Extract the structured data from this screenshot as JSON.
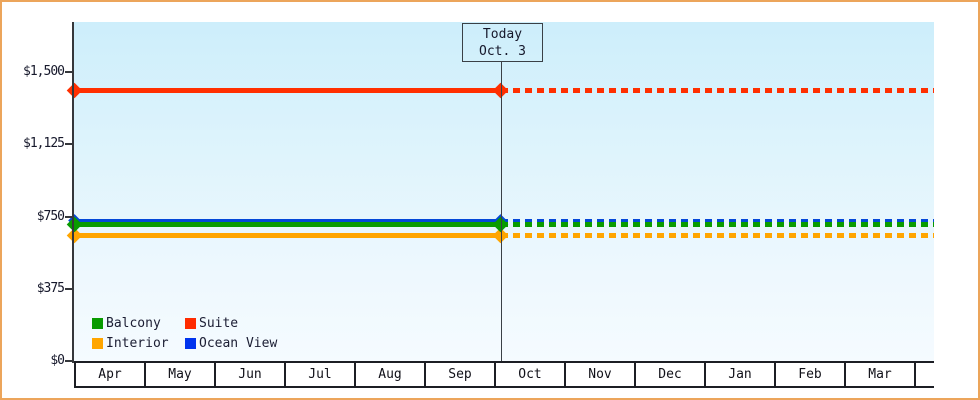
{
  "chart_data": {
    "type": "line",
    "title": "",
    "x_months": [
      "Apr",
      "May",
      "Jun",
      "Jul",
      "Aug",
      "Sep",
      "Oct",
      "Nov",
      "Dec",
      "Jan",
      "Feb",
      "Mar"
    ],
    "y_ticks": [
      {
        "label": "$1,500",
        "value": 1500
      },
      {
        "label": "$1,125",
        "value": 1125
      },
      {
        "label": "$750",
        "value": 750
      },
      {
        "label": "$375",
        "value": 375
      },
      {
        "label": "$0",
        "value": 0
      }
    ],
    "ylim": [
      0,
      1760
    ],
    "grid": false,
    "legend_position": "bottom-left inside plot",
    "today": {
      "line1": "Today",
      "line2": "Oct. 3",
      "month": "Oct",
      "day": 3
    },
    "line_style_note": "solid before today, dotted projection after today, diamond markers at series start and at today",
    "series": [
      {
        "name": "Suite",
        "color": "#ff2f00",
        "value": 1405,
        "thickness": 5,
        "marker": true
      },
      {
        "name": "Interior",
        "color": "#ffa500",
        "value": 651,
        "thickness": 5,
        "marker": true
      },
      {
        "name": "Ocean View",
        "color": "#0448d8",
        "value": 727,
        "thickness": 3,
        "marker": true
      },
      {
        "name": "Balcony",
        "color": "#099b00",
        "value": 709,
        "thickness": 5,
        "marker": true
      }
    ],
    "legend": [
      {
        "label": "Balcony",
        "color": "#099b00"
      },
      {
        "label": "Suite",
        "color": "#ff2b00"
      },
      {
        "label": "Interior",
        "color": "#ffa500"
      },
      {
        "label": "Ocean View",
        "color": "#0033ee"
      }
    ]
  }
}
